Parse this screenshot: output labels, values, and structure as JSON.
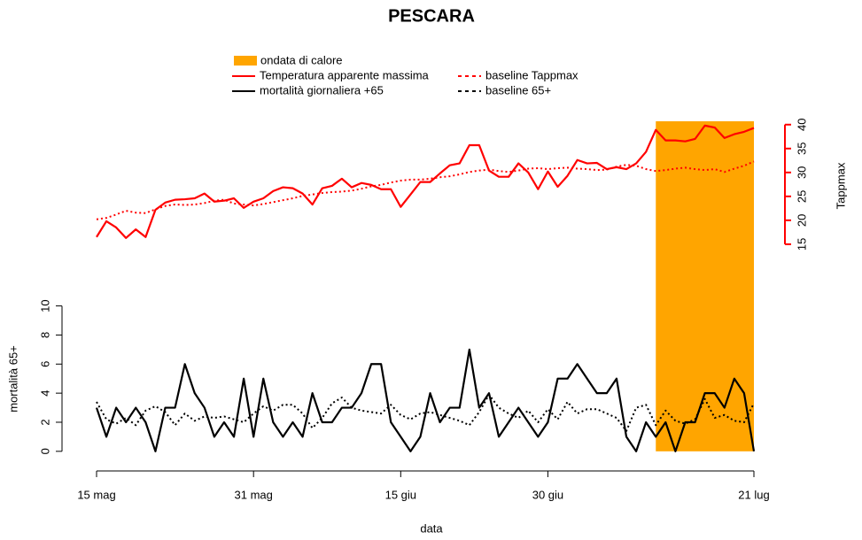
{
  "chart_data": {
    "type": "line",
    "title": "PESCARA",
    "x_label": "data",
    "y_label": "mortalità 65+",
    "y2_label": "Tappmax",
    "categories": [
      "15 mag",
      null,
      null,
      null,
      null,
      null,
      null,
      null,
      null,
      null,
      null,
      null,
      null,
      null,
      null,
      null,
      "31 mag",
      null,
      null,
      null,
      null,
      null,
      null,
      null,
      null,
      null,
      null,
      null,
      null,
      null,
      null,
      "15 giu",
      null,
      null,
      null,
      null,
      null,
      null,
      null,
      null,
      null,
      null,
      null,
      null,
      null,
      null,
      "30 giu",
      null,
      null,
      null,
      null,
      null,
      null,
      null,
      null,
      null,
      null,
      null,
      null,
      null,
      null,
      null,
      null,
      null,
      null,
      null,
      null,
      "21 lug"
    ],
    "heatwave": {
      "name": "ondata di calore",
      "color": "#ffa500",
      "range": [
        57,
        67
      ]
    },
    "series": [
      {
        "name": "Temperatura apparente massima",
        "color": "#ff0000",
        "axis": "y2",
        "linestyle": "solid",
        "values": [
          16.5,
          19.8,
          18.5,
          16.3,
          18.1,
          16.5,
          22.2,
          23.7,
          24.3,
          24.4,
          24.6,
          25.6,
          23.9,
          24.1,
          24.6,
          22.6,
          23.9,
          24.6,
          26.1,
          26.9,
          26.7,
          25.6,
          23.3,
          26.7,
          27.2,
          28.7,
          26.9,
          27.8,
          27.4,
          26.5,
          26.5,
          22.8,
          25.4,
          28.0,
          28.0,
          29.8,
          31.5,
          31.9,
          35.7,
          35.7,
          30.4,
          29.1,
          29.1,
          31.9,
          30.0,
          26.5,
          30.2,
          27.0,
          29.3,
          32.6,
          31.9,
          32.0,
          30.7,
          31.1,
          30.7,
          31.9,
          34.3,
          38.9,
          36.7,
          36.7,
          36.5,
          37.0,
          39.8,
          39.4,
          37.2,
          38.0,
          38.5,
          39.3
        ]
      },
      {
        "name": "baseline Tappmax",
        "color": "#ff0000",
        "axis": "y2",
        "linestyle": "dashed",
        "values": [
          20.2,
          20.5,
          21.2,
          22.0,
          21.6,
          21.5,
          22.3,
          23.0,
          23.3,
          23.2,
          23.3,
          23.6,
          24.1,
          24.3,
          23.5,
          23.3,
          23.1,
          23.4,
          23.8,
          24.2,
          24.6,
          25.1,
          25.4,
          25.7,
          25.9,
          26.0,
          26.2,
          26.6,
          27.1,
          27.4,
          27.9,
          28.3,
          28.5,
          28.5,
          28.7,
          29.0,
          29.2,
          29.6,
          30.1,
          30.4,
          30.6,
          30.3,
          30.1,
          30.4,
          30.8,
          30.9,
          30.7,
          30.9,
          31.0,
          30.8,
          30.7,
          30.5,
          30.6,
          31.2,
          31.6,
          31.4,
          30.7,
          30.3,
          30.5,
          30.8,
          31.0,
          30.7,
          30.5,
          30.7,
          30.1,
          30.8,
          31.4,
          32.3
        ]
      },
      {
        "name": "mortalità giornaliera +65",
        "color": "#000000",
        "axis": "y",
        "linestyle": "solid",
        "values": [
          3,
          1,
          3,
          2,
          3,
          2,
          0,
          3,
          3,
          6,
          4,
          3,
          1,
          2,
          1,
          5,
          1,
          5,
          2,
          1,
          2,
          1,
          4,
          2,
          2,
          3,
          3,
          4,
          6,
          6,
          2,
          1,
          0,
          1,
          4,
          2,
          3,
          3,
          7,
          3,
          4,
          1,
          2,
          3,
          2,
          1,
          2,
          5,
          5,
          6,
          5,
          4,
          4,
          5,
          1,
          0,
          2,
          1,
          2,
          0,
          2,
          2,
          4,
          4,
          3,
          5,
          4,
          0
        ]
      },
      {
        "name": "baseline 65+",
        "color": "#000000",
        "axis": "y",
        "linestyle": "dashed",
        "values": [
          3.4,
          2.2,
          1.9,
          2.3,
          1.8,
          2.8,
          3.1,
          2.7,
          1.8,
          2.6,
          2.1,
          2.4,
          2.3,
          2.4,
          2.2,
          2.0,
          2.6,
          3.1,
          2.8,
          3.2,
          3.2,
          2.6,
          1.6,
          2.3,
          3.3,
          3.7,
          3.0,
          2.8,
          2.7,
          2.6,
          3.2,
          2.5,
          2.2,
          2.6,
          2.7,
          2.5,
          2.3,
          2.1,
          1.8,
          2.7,
          3.9,
          3.0,
          2.6,
          2.3,
          2.8,
          2.0,
          2.9,
          2.2,
          3.4,
          2.6,
          2.9,
          2.9,
          2.6,
          2.3,
          1.4,
          3.0,
          3.2,
          1.8,
          2.8,
          2.1,
          1.9,
          2.2,
          3.6,
          2.3,
          2.5,
          2.1,
          2.0,
          3.3
        ]
      }
    ],
    "ylim": [
      -1.35,
      22.7
    ],
    "yticks": [
      0,
      2,
      4,
      6,
      8,
      10
    ],
    "y2lim": [
      -32.4,
      40.7
    ],
    "y2ticks": [
      15,
      20,
      25,
      30,
      35,
      40
    ],
    "y2_axis_color": "#ff0000"
  }
}
